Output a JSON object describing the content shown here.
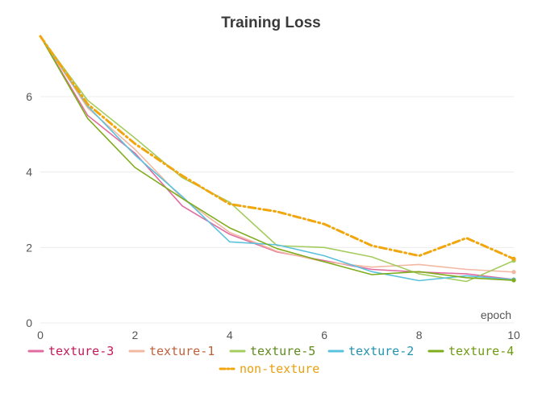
{
  "chart_data": {
    "type": "line",
    "title": "Training Loss",
    "xlabel": "epoch",
    "ylabel": "",
    "x": [
      0,
      1,
      2,
      3,
      4,
      5,
      6,
      7,
      8,
      9,
      10
    ],
    "xlim": [
      0,
      10
    ],
    "ylim": [
      0,
      7.6
    ],
    "xticks": [
      "0",
      "2",
      "4",
      "6",
      "8",
      "10"
    ],
    "yticks": [
      "0",
      "2",
      "4",
      "6"
    ],
    "grid": true,
    "legend_position": "bottom",
    "series": [
      {
        "name": "texture-3",
        "color": "#e06c9f",
        "text_color": "#c2185b",
        "dashed": false,
        "values": [
          7.6,
          5.5,
          4.5,
          3.1,
          2.35,
          1.88,
          1.65,
          1.42,
          1.35,
          1.3,
          1.15
        ]
      },
      {
        "name": "texture-1",
        "color": "#f2b8a2",
        "text_color": "#c0603a",
        "dashed": false,
        "values": [
          7.6,
          5.7,
          4.6,
          3.3,
          2.4,
          1.9,
          1.62,
          1.48,
          1.55,
          1.42,
          1.35
        ]
      },
      {
        "name": "texture-5",
        "color": "#a5cc5f",
        "text_color": "#5f8a1e",
        "dashed": false,
        "values": [
          7.6,
          5.9,
          4.9,
          3.85,
          3.2,
          2.05,
          2.0,
          1.75,
          1.3,
          1.1,
          1.65
        ]
      },
      {
        "name": "texture-2",
        "color": "#5bc2dd",
        "text_color": "#2193b0",
        "dashed": false,
        "values": [
          7.6,
          5.75,
          4.45,
          3.35,
          2.15,
          2.07,
          1.78,
          1.36,
          1.12,
          1.25,
          1.15
        ]
      },
      {
        "name": "texture-4",
        "color": "#7fac1c",
        "text_color": "#6e9a10",
        "dashed": false,
        "values": [
          7.6,
          5.42,
          4.12,
          3.3,
          2.52,
          1.97,
          1.62,
          1.28,
          1.36,
          1.2,
          1.13
        ]
      },
      {
        "name": "non-texture",
        "color": "#f2a60d",
        "text_color": "#e8a010",
        "dashed": true,
        "values": [
          7.6,
          5.8,
          4.75,
          3.9,
          3.15,
          2.95,
          2.62,
          2.05,
          1.78,
          2.25,
          1.7
        ]
      }
    ]
  }
}
